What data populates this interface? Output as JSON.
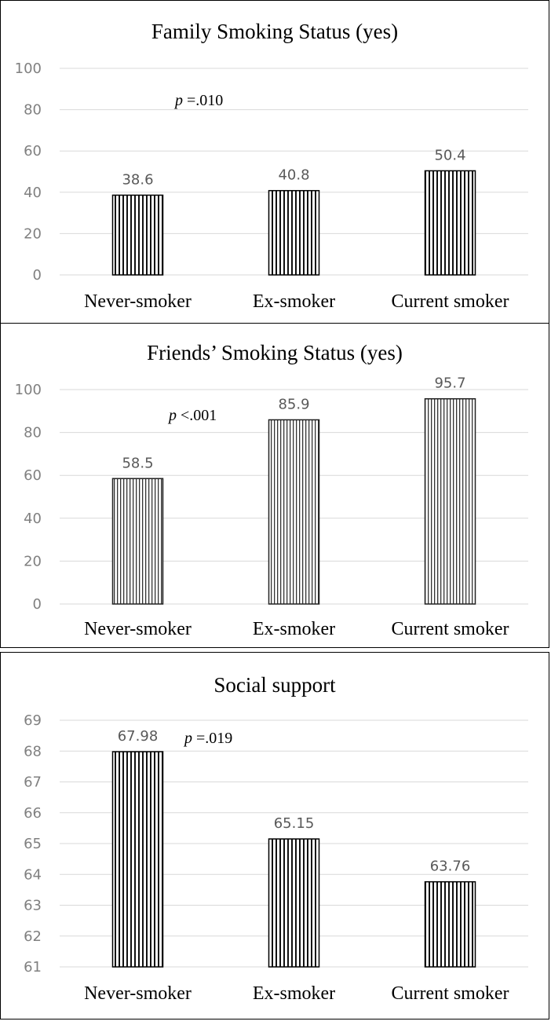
{
  "chart_data": [
    {
      "type": "bar",
      "title": "Family Smoking Status (yes)",
      "categories": [
        "Never-smoker",
        "Ex-smoker",
        "Current smoker"
      ],
      "values": [
        38.6,
        40.8,
        50.4
      ],
      "data_labels": [
        "38.6",
        "40.8",
        "50.4"
      ],
      "ylim": [
        0,
        100
      ],
      "yticks": [
        "0",
        "20",
        "40",
        "60",
        "80",
        "100"
      ],
      "annotation": {
        "p": "p",
        "rest": " =.010"
      },
      "bar_pattern": "vertical-stripes-dark",
      "grid": true
    },
    {
      "type": "bar",
      "title": "Friends’ Smoking Status (yes)",
      "categories": [
        "Never-smoker",
        "Ex-smoker",
        "Current smoker"
      ],
      "values": [
        58.5,
        85.9,
        95.7
      ],
      "data_labels": [
        "58.5",
        "85.9",
        "95.7"
      ],
      "ylim": [
        0,
        100
      ],
      "yticks": [
        "0",
        "20",
        "40",
        "60",
        "80",
        "100"
      ],
      "annotation": {
        "p": "p",
        "rest": " <.001"
      },
      "bar_pattern": "vertical-stripes-light",
      "grid": true
    },
    {
      "type": "bar",
      "title": "Social support",
      "categories": [
        "Never-smoker",
        "Ex-smoker",
        "Current smoker"
      ],
      "values": [
        67.98,
        65.15,
        63.76
      ],
      "data_labels": [
        "67.98",
        "65.15",
        "63.76"
      ],
      "ylim": [
        61,
        69
      ],
      "yticks": [
        "61",
        "62",
        "63",
        "64",
        "65",
        "66",
        "67",
        "68",
        "69"
      ],
      "annotation": {
        "p": "p",
        "rest": " =.019"
      },
      "bar_pattern": "vertical-stripes-dark",
      "grid": true
    }
  ]
}
